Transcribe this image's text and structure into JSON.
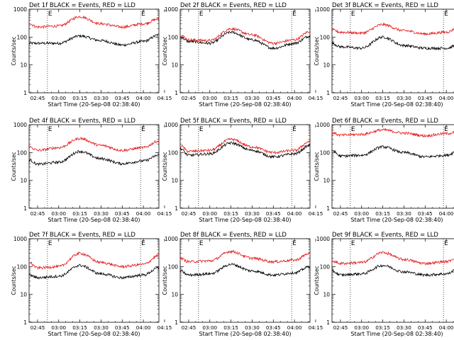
{
  "figure": {
    "shared_xlabel": "Start Time (20-Sep-08 02:38:40)",
    "shared_ylabel": "Counts/sec",
    "marker_label": "E",
    "colors": {
      "events": "#000000",
      "lld": "#e41a1c",
      "axes": "#000000"
    }
  },
  "chart_data": [
    {
      "type": "line",
      "title": "Det 1f BLACK = Events, RED = LLD",
      "x_ticks": [
        "02:45",
        "03:00",
        "03:15",
        "03:30",
        "03:45",
        "04:00",
        "04:15"
      ],
      "y_ticks": [
        "1",
        "10",
        "100",
        "1000"
      ],
      "ylim": [
        1,
        1000
      ],
      "yscale": "log",
      "x_minutes": [
        -6,
        0,
        15,
        30,
        45,
        60,
        75,
        86
      ],
      "markers_minutes": [
        7,
        73
      ],
      "series": [
        {
          "name": "BLACK = Events",
          "values": [
            60,
            60,
            60,
            110,
            75,
            52,
            70,
            120
          ]
        },
        {
          "name": "RED = LLD",
          "values": [
            300,
            230,
            250,
            540,
            300,
            230,
            300,
            450
          ]
        }
      ]
    },
    {
      "type": "line",
      "title": "Det 2f BLACK = Events, RED = LLD",
      "x_ticks": [
        "02:45",
        "03:00",
        "03:15",
        "03:30",
        "03:45",
        "04:00",
        "04:15"
      ],
      "y_ticks": [
        "1",
        "10",
        "100",
        "1000"
      ],
      "ylim": [
        1,
        1000
      ],
      "yscale": "log",
      "x_minutes": [
        -6,
        0,
        15,
        30,
        45,
        60,
        75,
        86
      ],
      "markers_minutes": [
        7,
        73
      ],
      "series": [
        {
          "name": "BLACK = Events",
          "values": [
            100,
            70,
            60,
            150,
            80,
            40,
            60,
            110
          ]
        },
        {
          "name": "RED = LLD",
          "values": [
            120,
            80,
            75,
            200,
            120,
            60,
            80,
            160
          ]
        }
      ]
    },
    {
      "type": "line",
      "title": "Det 3f BLACK = Events, RED = LLD",
      "x_ticks": [
        "02:45",
        "03:00",
        "03:15",
        "03:30",
        "03:45",
        "04:00",
        "04:15"
      ],
      "y_ticks": [
        "1",
        "10",
        "100",
        "1000"
      ],
      "ylim": [
        1,
        1000
      ],
      "yscale": "log",
      "x_minutes": [
        -6,
        0,
        15,
        30,
        45,
        60,
        75,
        86
      ],
      "markers_minutes": [
        7,
        73
      ],
      "series": [
        {
          "name": "BLACK = Events",
          "values": [
            60,
            45,
            40,
            100,
            50,
            40,
            40,
            60
          ]
        },
        {
          "name": "RED = LLD",
          "values": [
            180,
            150,
            140,
            280,
            170,
            130,
            150,
            260
          ]
        }
      ]
    },
    {
      "type": "line",
      "title": "Det 4f BLACK = Events, RED = LLD",
      "x_ticks": [
        "02:45",
        "03:00",
        "03:15",
        "03:30",
        "03:45",
        "04:00",
        "04:15"
      ],
      "y_ticks": [
        "1",
        "10",
        "100",
        "1000"
      ],
      "ylim": [
        1,
        1000
      ],
      "yscale": "log",
      "x_minutes": [
        -6,
        0,
        15,
        30,
        45,
        60,
        75,
        86
      ],
      "markers_minutes": [
        7,
        73
      ],
      "series": [
        {
          "name": "BLACK = Events",
          "values": [
            55,
            38,
            45,
            110,
            60,
            40,
            50,
            80
          ]
        },
        {
          "name": "RED = LLD",
          "values": [
            160,
            120,
            150,
            320,
            180,
            120,
            150,
            260
          ]
        }
      ]
    },
    {
      "type": "line",
      "title": "Det 5f BLACK = Events, RED = LLD",
      "x_ticks": [
        "02:45",
        "03:00",
        "03:15",
        "03:30",
        "03:45",
        "04:00",
        "04:15"
      ],
      "y_ticks": [
        "1",
        "10",
        "100",
        "1000"
      ],
      "ylim": [
        1,
        1000
      ],
      "yscale": "log",
      "x_minutes": [
        -6,
        0,
        15,
        30,
        45,
        60,
        75,
        86
      ],
      "markers_minutes": [
        7,
        73
      ],
      "series": [
        {
          "name": "BLACK = Events",
          "values": [
            140,
            80,
            90,
            220,
            120,
            70,
            90,
            180
          ]
        },
        {
          "name": "RED = LLD",
          "values": [
            180,
            110,
            120,
            300,
            160,
            100,
            120,
            250
          ]
        }
      ]
    },
    {
      "type": "line",
      "title": "Det 6f BLACK = Events, RED = LLD",
      "x_ticks": [
        "02:45",
        "03:00",
        "03:15",
        "03:30",
        "03:45",
        "04:00",
        "04:15"
      ],
      "y_ticks": [
        "1",
        "10",
        "100",
        "1000"
      ],
      "ylim": [
        1,
        1000
      ],
      "yscale": "log",
      "x_minutes": [
        -6,
        0,
        15,
        30,
        45,
        60,
        75,
        86
      ],
      "markers_minutes": [
        7,
        73
      ],
      "series": [
        {
          "name": "BLACK = Events",
          "values": [
            120,
            75,
            80,
            160,
            100,
            70,
            80,
            140
          ]
        },
        {
          "name": "RED = LLD",
          "values": [
            520,
            420,
            450,
            650,
            500,
            400,
            480,
            600
          ]
        }
      ]
    },
    {
      "type": "line",
      "title": "Det 7f BLACK = Events, RED = LLD",
      "x_ticks": [
        "02:45",
        "03:00",
        "03:15",
        "03:30",
        "03:45",
        "04:00",
        "04:15"
      ],
      "y_ticks": [
        "1",
        "10",
        "100",
        "1000"
      ],
      "ylim": [
        1,
        1000
      ],
      "yscale": "log",
      "x_minutes": [
        -6,
        0,
        15,
        30,
        45,
        60,
        75,
        86
      ],
      "markers_minutes": [
        7,
        73
      ],
      "series": [
        {
          "name": "BLACK = Events",
          "values": [
            50,
            40,
            45,
            110,
            55,
            40,
            50,
            90
          ]
        },
        {
          "name": "RED = LLD",
          "values": [
            140,
            90,
            100,
            300,
            140,
            100,
            120,
            250
          ]
        }
      ]
    },
    {
      "type": "line",
      "title": "Det 8f BLACK = Events, RED = LLD",
      "x_ticks": [
        "02:45",
        "03:00",
        "03:15",
        "03:30",
        "03:45",
        "04:00",
        "04:15"
      ],
      "y_ticks": [
        "1",
        "10",
        "100",
        "1000"
      ],
      "ylim": [
        1,
        1000
      ],
      "yscale": "log",
      "x_minutes": [
        -6,
        0,
        15,
        30,
        45,
        60,
        75,
        86
      ],
      "markers_minutes": [
        7,
        73
      ],
      "series": [
        {
          "name": "BLACK = Events",
          "values": [
            70,
            50,
            55,
            120,
            70,
            50,
            60,
            100
          ]
        },
        {
          "name": "RED = LLD",
          "values": [
            200,
            150,
            160,
            350,
            200,
            150,
            170,
            300
          ]
        }
      ]
    },
    {
      "type": "line",
      "title": "Det 9f BLACK = Events, RED = LLD",
      "x_ticks": [
        "02:45",
        "03:00",
        "03:15",
        "03:30",
        "03:45",
        "04:00",
        "04:15"
      ],
      "y_ticks": [
        "1",
        "10",
        "100",
        "1000"
      ],
      "ylim": [
        1,
        1000
      ],
      "yscale": "log",
      "x_minutes": [
        -6,
        0,
        15,
        30,
        45,
        60,
        75,
        86
      ],
      "markers_minutes": [
        7,
        73
      ],
      "series": [
        {
          "name": "BLACK = Events",
          "values": [
            70,
            50,
            55,
            110,
            65,
            50,
            55,
            100
          ]
        },
        {
          "name": "RED = LLD",
          "values": [
            160,
            130,
            140,
            320,
            180,
            130,
            150,
            280
          ]
        }
      ]
    }
  ]
}
